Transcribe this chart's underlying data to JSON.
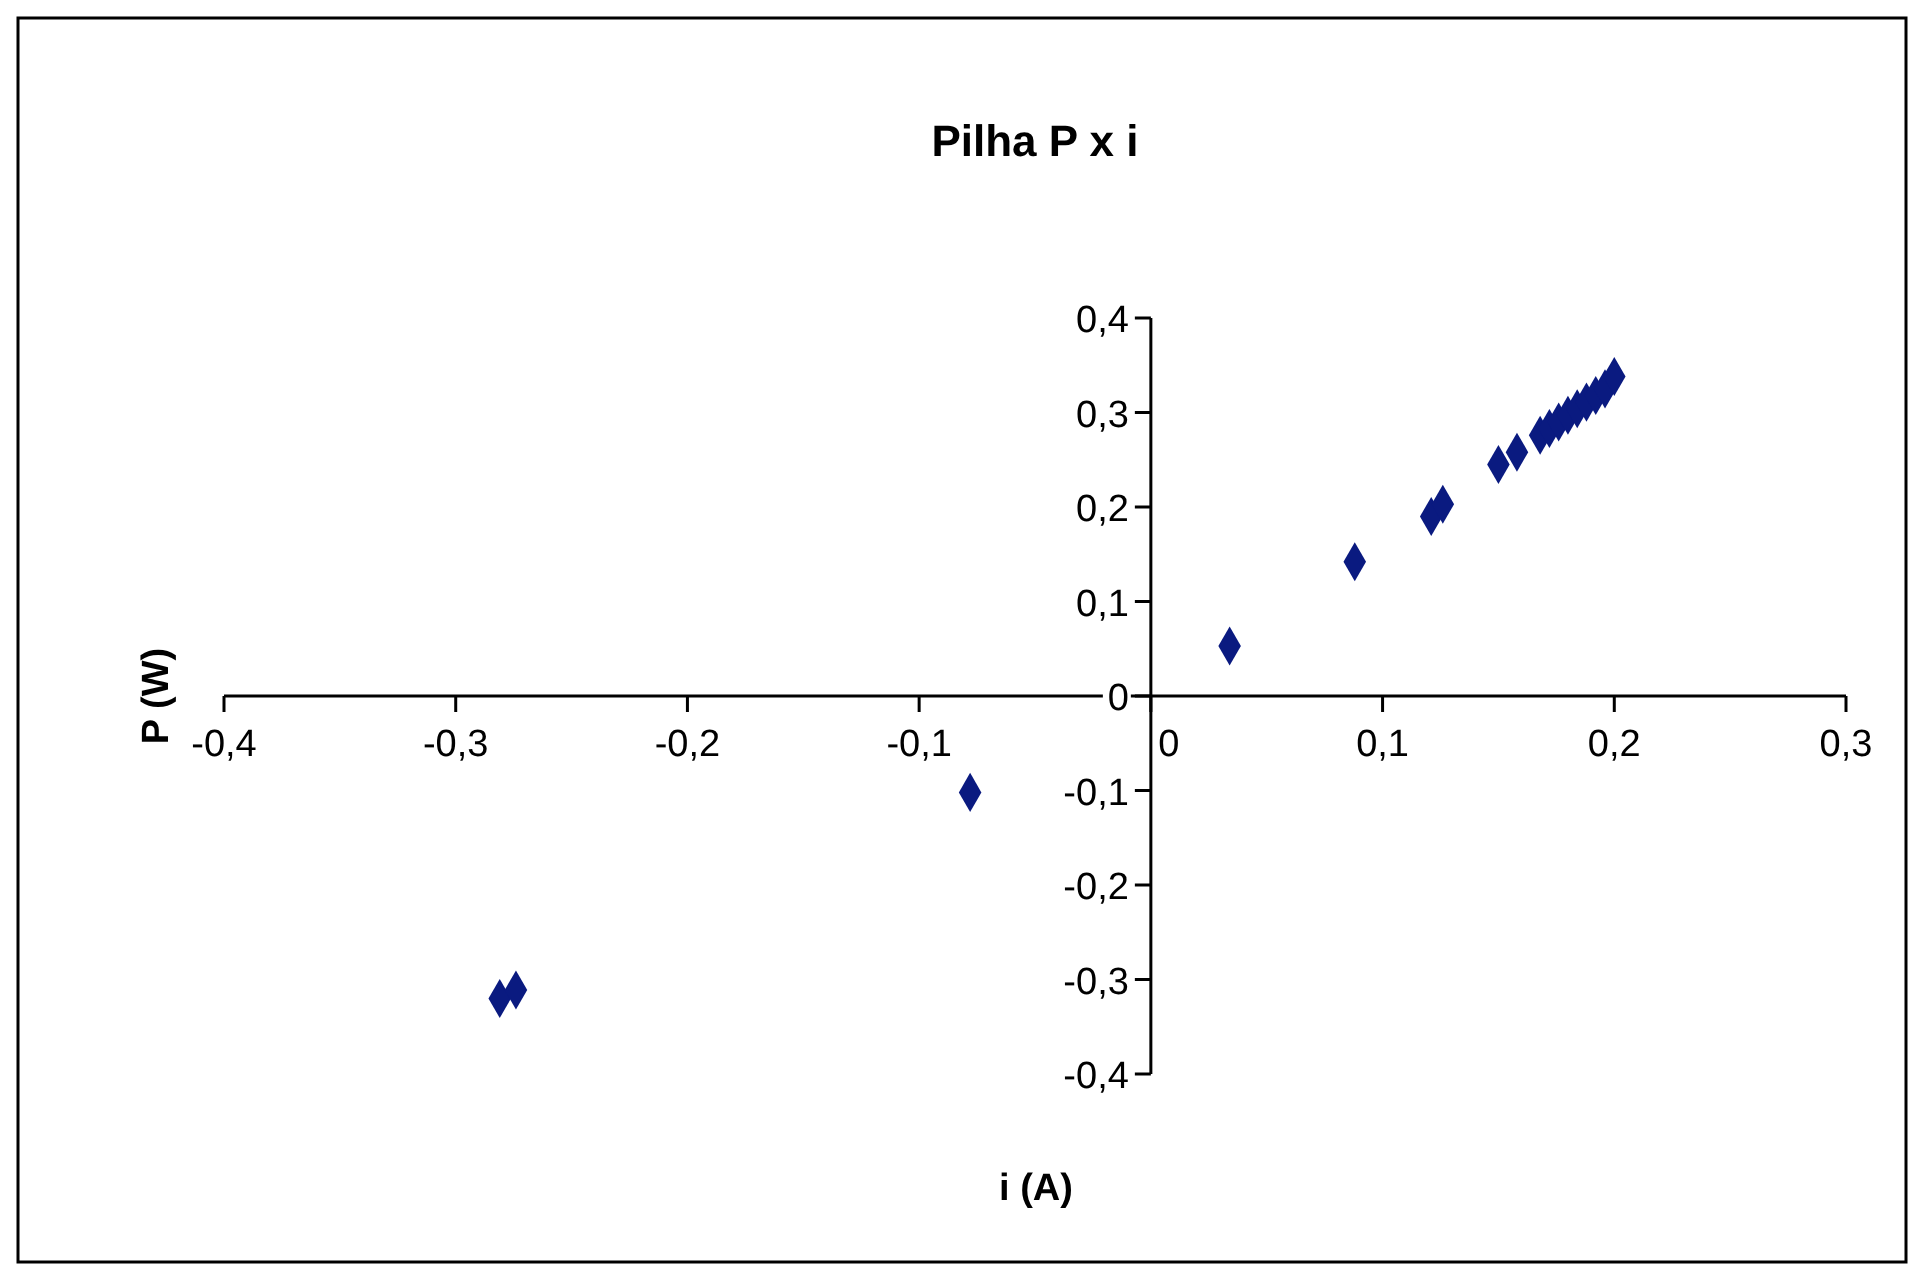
{
  "chart_data": {
    "type": "scatter",
    "title": "Pilha P x i",
    "xlabel": "i (A)",
    "ylabel": "P (W)",
    "marker": "diamond",
    "grid": false,
    "xlim": [
      -0.4,
      0.3
    ],
    "ylim": [
      -0.4,
      0.4
    ],
    "xticks": [
      {
        "value": -0.4,
        "label": "-0,4"
      },
      {
        "value": -0.3,
        "label": "-0,3"
      },
      {
        "value": -0.2,
        "label": "-0,2"
      },
      {
        "value": -0.1,
        "label": "-0,1"
      },
      {
        "value": 0,
        "label": "0"
      },
      {
        "value": 0.1,
        "label": "0,1"
      },
      {
        "value": 0.2,
        "label": "0,2"
      },
      {
        "value": 0.3,
        "label": "0,3"
      }
    ],
    "yticks": [
      {
        "value": -0.4,
        "label": "-0,4"
      },
      {
        "value": -0.3,
        "label": "-0,3"
      },
      {
        "value": -0.2,
        "label": "-0,2"
      },
      {
        "value": -0.1,
        "label": "-0,1"
      },
      {
        "value": 0,
        "label": "0"
      },
      {
        "value": 0.1,
        "label": "0,1"
      },
      {
        "value": 0.2,
        "label": "0,2"
      },
      {
        "value": 0.3,
        "label": "0,3"
      },
      {
        "value": 0.4,
        "label": "0,4"
      }
    ],
    "series": [
      {
        "color": "#0a1a80",
        "x": [
          -0.281,
          -0.274,
          -0.078,
          0.034,
          0.088,
          0.121,
          0.126,
          0.15,
          0.158,
          0.168,
          0.172,
          0.176,
          0.18,
          0.184,
          0.188,
          0.192,
          0.196,
          0.2
        ],
        "values": [
          -0.32,
          -0.311,
          -0.102,
          0.053,
          0.142,
          0.19,
          0.203,
          0.245,
          0.258,
          0.276,
          0.283,
          0.29,
          0.297,
          0.304,
          0.311,
          0.318,
          0.325,
          0.338
        ]
      }
    ]
  }
}
